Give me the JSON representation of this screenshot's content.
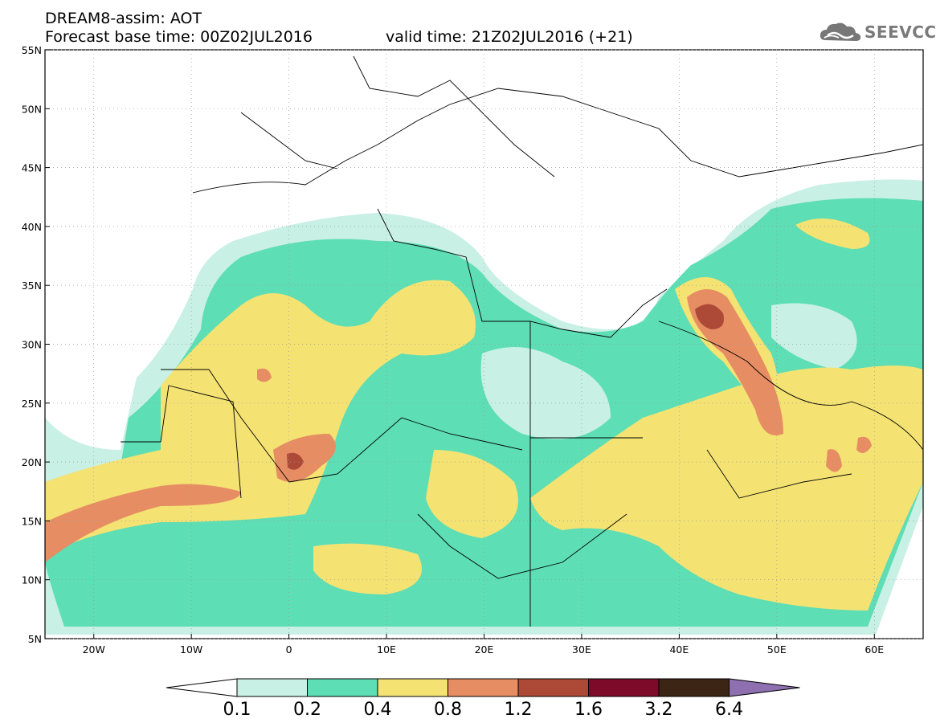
{
  "header": {
    "title": "DREAM8-assim: AOT",
    "base_time": "Forecast base time: 00Z02JUL2016",
    "valid_time": "valid time: 21Z02JUL2016 (+21)"
  },
  "logo": {
    "text": "SEEVCCC",
    "icon": "cloud-icon"
  },
  "map": {
    "lat_labels": [
      "55N",
      "50N",
      "45N",
      "40N",
      "35N",
      "30N",
      "25N",
      "20N",
      "15N",
      "10N",
      "5N"
    ],
    "lat_values": [
      55,
      50,
      45,
      40,
      35,
      30,
      25,
      20,
      15,
      10,
      5
    ],
    "lon_labels": [
      "20W",
      "10W",
      "0",
      "10E",
      "20E",
      "30E",
      "40E",
      "50E",
      "60E"
    ],
    "lon_values": [
      -20,
      -10,
      0,
      10,
      20,
      30,
      40,
      50,
      60
    ],
    "lon_range": [
      -25,
      65
    ],
    "lat_range": [
      5,
      55
    ],
    "grid": "dotted"
  },
  "legend": {
    "labels": [
      "0.1",
      "0.2",
      "0.4",
      "0.8",
      "1.2",
      "1.6",
      "3.2",
      "6.4"
    ],
    "colors": [
      "#ffffff",
      "#c8f0e4",
      "#5ddeb5",
      "#f4e273",
      "#e78d63",
      "#ad4a37",
      "#7e0a2a",
      "#3c2514",
      "#8e6fb0"
    ]
  }
}
